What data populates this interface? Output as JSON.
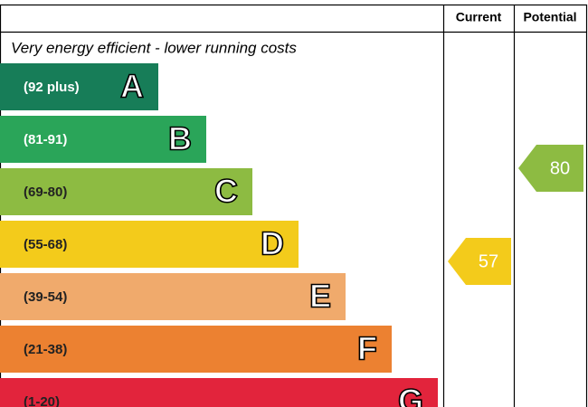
{
  "header": {
    "current": "Current",
    "potential": "Potential"
  },
  "subtitle": "Very energy efficient - lower running costs",
  "bands": [
    {
      "range": "(92 plus)",
      "letter": "A"
    },
    {
      "range": "(81-91)",
      "letter": "B"
    },
    {
      "range": "(69-80)",
      "letter": "C"
    },
    {
      "range": "(55-68)",
      "letter": "D"
    },
    {
      "range": "(39-54)",
      "letter": "E"
    },
    {
      "range": "(21-38)",
      "letter": "F"
    },
    {
      "range": "(1-20)",
      "letter": "G"
    }
  ],
  "current": 57,
  "potential": 80
}
